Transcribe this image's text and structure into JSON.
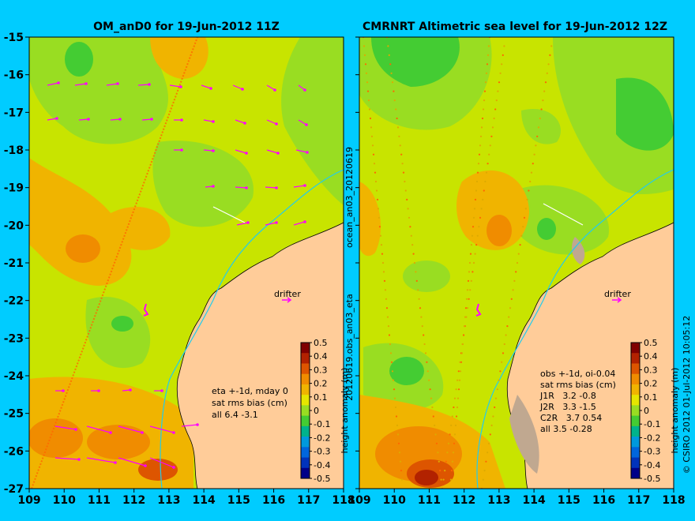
{
  "panels": [
    {
      "title": "OM_anD0 for 19-Jun-2012 11Z",
      "drifter_label": "drifter",
      "stats_lines": [
        "eta +-1d, mday 0",
        "sat rms bias (cm)",
        "all 6.4 -3.1"
      ]
    },
    {
      "title": "CMRNRT Altimetric sea level  for 19-Jun-2012 12Z",
      "drifter_label": "drifter",
      "stats_lines": [
        "obs +-1d, oi-0.04",
        "sat rms bias (cm)",
        "J1R   3.2 -0.8",
        "J2R   3.3 -1.5",
        "C2R   3.7 0.54",
        "all 3.5 -0.28"
      ]
    }
  ],
  "side_labels": {
    "left_top": "ocean_an03_20120619",
    "left_bottom": "20120619.obs_an03_eta",
    "right": "© CSIRO 2012   01-Jul-2012 10:05:12"
  },
  "colorbar": {
    "label": "height anomaly (m)",
    "ticks": [
      "0.5",
      "0.4",
      "0.3",
      "0.2",
      "0.1",
      "0",
      "-0.1",
      "-0.2",
      "-0.3",
      "-0.4",
      "-0.5"
    ],
    "colors": [
      "#800000",
      "#b22200",
      "#dd5500",
      "#f08c00",
      "#f0b400",
      "#e6e600",
      "#99dd22",
      "#44cc33",
      "#00b38c",
      "#0099dd",
      "#0066dd",
      "#0033bb",
      "#000088"
    ]
  },
  "chart_data": [
    {
      "type": "heatmap",
      "title": "OM_anD0 for 19-Jun-2012 11Z",
      "x_ticks": [
        "109",
        "110",
        "111",
        "112",
        "113",
        "114",
        "115",
        "116",
        "117",
        "118"
      ],
      "y_ticks": [
        "-15",
        "-16",
        "-17",
        "-18",
        "-19",
        "-20",
        "-21",
        "-22",
        "-23",
        "-24",
        "-25",
        "-26",
        "-27"
      ],
      "xlim": [
        109,
        118
      ],
      "ylim": [
        -27,
        -15
      ],
      "zlim": [
        -0.5,
        0.5
      ],
      "zlabel": "height anomaly (m)"
    },
    {
      "type": "heatmap",
      "title": "CMRNRT Altimetric sea level  for 19-Jun-2012 12Z",
      "x_ticks": [
        "109",
        "110",
        "111",
        "112",
        "113",
        "114",
        "115",
        "116",
        "117",
        "118"
      ],
      "y_ticks": [
        "-15",
        "-16",
        "-17",
        "-18",
        "-19",
        "-20",
        "-21",
        "-22",
        "-23",
        "-24",
        "-25",
        "-26",
        "-27"
      ],
      "xlim": [
        109,
        118
      ],
      "ylim": [
        -27,
        -15
      ],
      "zlim": [
        -0.5,
        0.5
      ],
      "zlabel": "height anomaly (m)"
    }
  ]
}
